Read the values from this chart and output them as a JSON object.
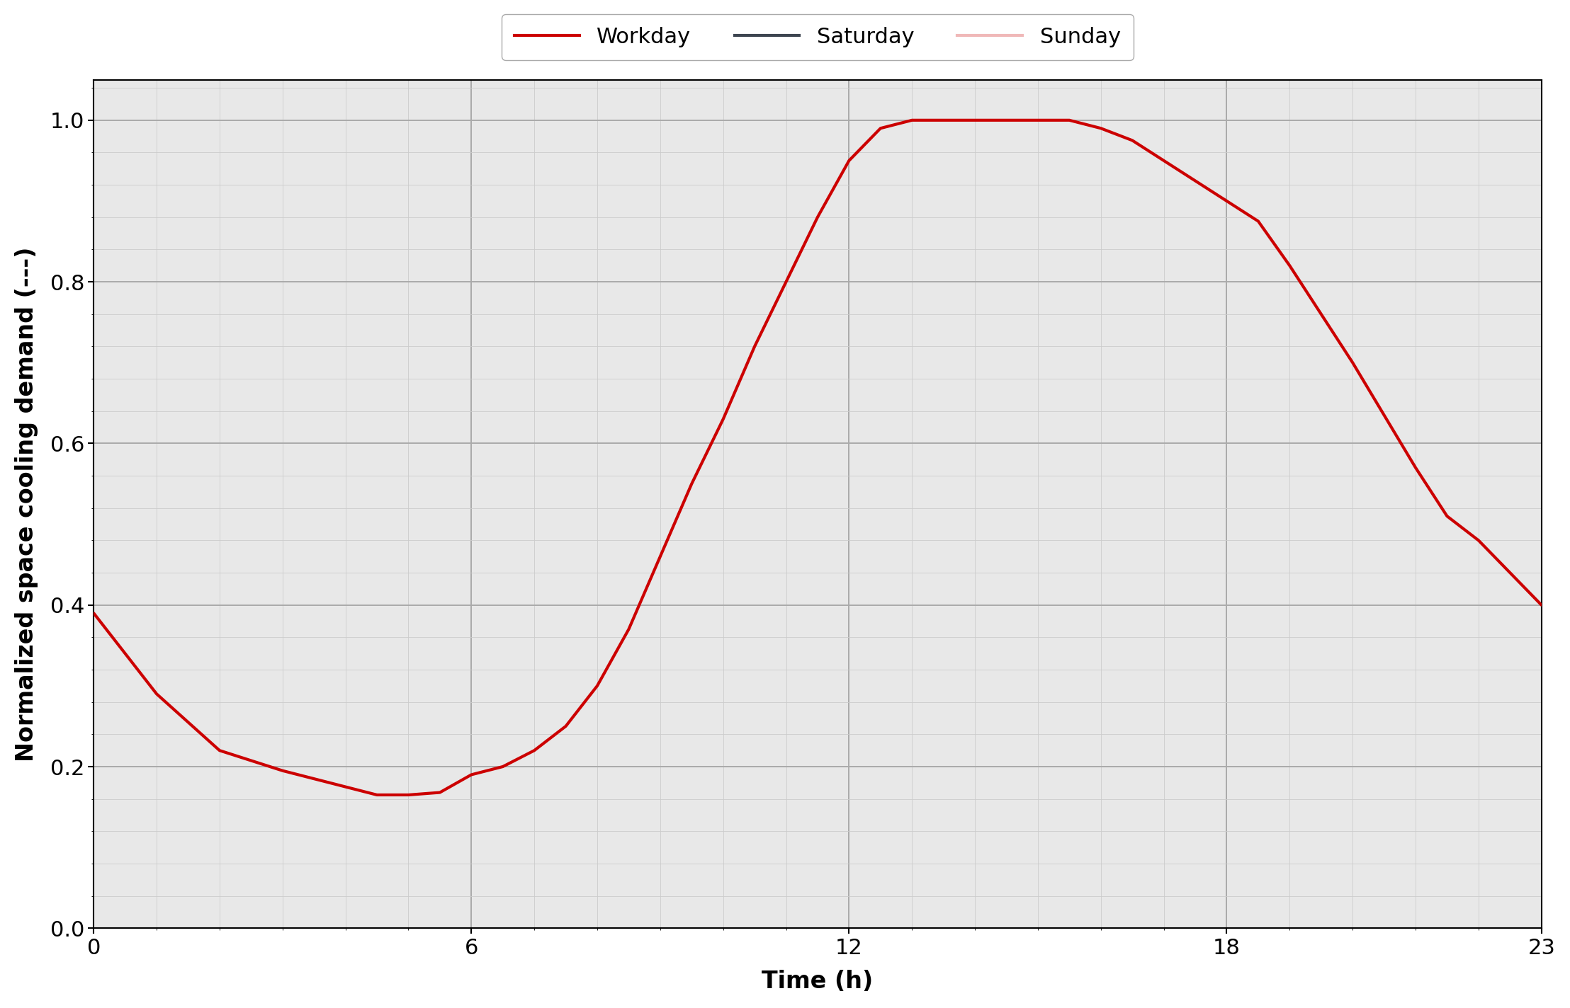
{
  "title": "",
  "xlabel": "Time (h)",
  "ylabel": "Normalized space cooling demand (---)",
  "workday_x": [
    0,
    1,
    2,
    3,
    4,
    4.5,
    5,
    5.5,
    6,
    6.5,
    7,
    7.5,
    8,
    8.5,
    9,
    9.5,
    10,
    10.5,
    11,
    11.5,
    12,
    12.5,
    13,
    13.5,
    14,
    14.5,
    15,
    15.5,
    16,
    16.5,
    17,
    17.5,
    18,
    18.5,
    19,
    19.5,
    20,
    20.5,
    21,
    21.5,
    22,
    22.5,
    23
  ],
  "workday_y": [
    0.39,
    0.29,
    0.22,
    0.195,
    0.175,
    0.165,
    0.165,
    0.168,
    0.19,
    0.2,
    0.22,
    0.25,
    0.3,
    0.37,
    0.46,
    0.55,
    0.63,
    0.72,
    0.8,
    0.88,
    0.95,
    0.99,
    1.0,
    1.0,
    1.0,
    1.0,
    1.0,
    1.0,
    0.99,
    0.975,
    0.95,
    0.925,
    0.9,
    0.875,
    0.82,
    0.76,
    0.7,
    0.635,
    0.57,
    0.51,
    0.48,
    0.44,
    0.4
  ],
  "saturday_color": "#3d4550",
  "sunday_color": "#f0b8b8",
  "workday_color": "#cc0000",
  "legend_labels": [
    "Workday",
    "Saturday",
    "Sunday"
  ],
  "xlim": [
    0,
    23
  ],
  "ylim": [
    0.0,
    1.05
  ],
  "xticks": [
    0,
    6,
    12,
    18,
    23
  ],
  "yticks": [
    0.0,
    0.2,
    0.4,
    0.6,
    0.8,
    1.0
  ],
  "grid_major_color": "#aaaaaa",
  "grid_minor_color": "#cccccc",
  "bg_color": "#e8e8e8",
  "fig_width": 22.16,
  "fig_height": 14.24,
  "dpi": 100,
  "line_width": 3.0,
  "font_size_label": 24,
  "font_size_tick": 22,
  "font_size_legend": 22
}
